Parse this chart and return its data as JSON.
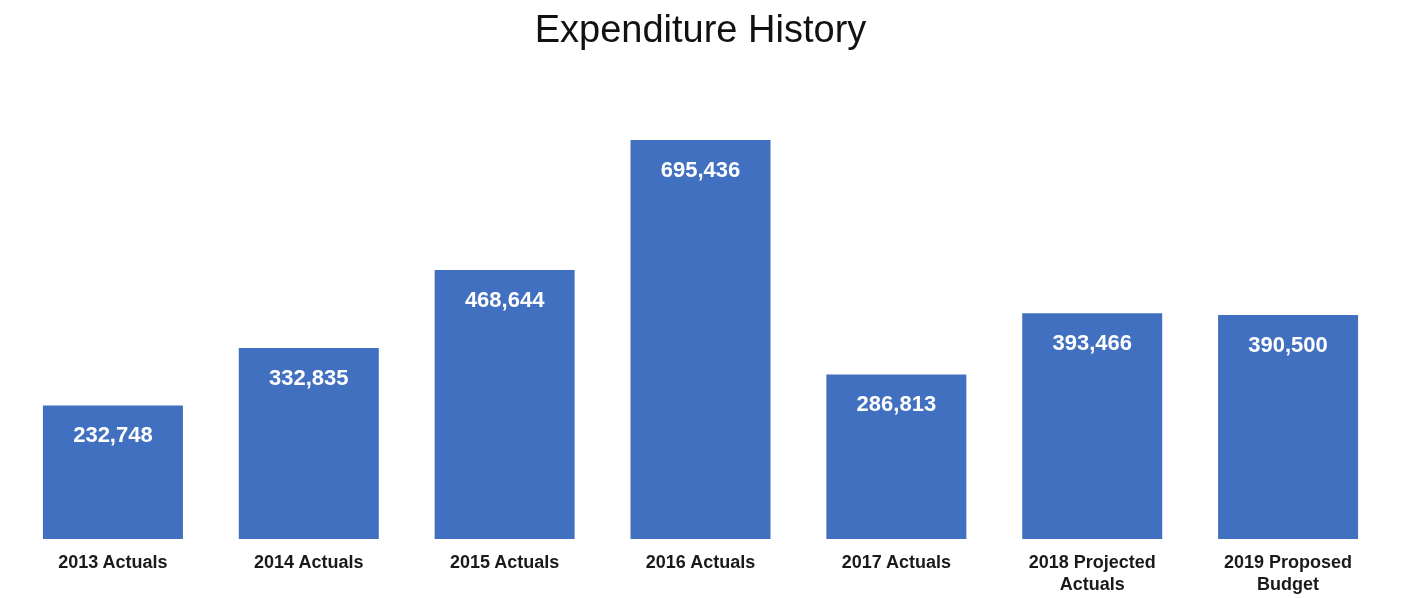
{
  "chart_data": {
    "type": "bar",
    "title": "Expenditure History",
    "categories": [
      "2013 Actuals",
      "2014 Actuals",
      "2015 Actuals",
      "2016 Actuals",
      "2017 Actuals",
      "2018 Projected Actuals",
      "2019 Proposed Budget"
    ],
    "values": [
      232748,
      332835,
      468644,
      695436,
      286813,
      393466,
      390500
    ],
    "value_labels": [
      "232,748",
      "332,835",
      "468,644",
      "695,436",
      "286,813",
      "393,466",
      "390,500"
    ],
    "color": "#4170c0"
  }
}
